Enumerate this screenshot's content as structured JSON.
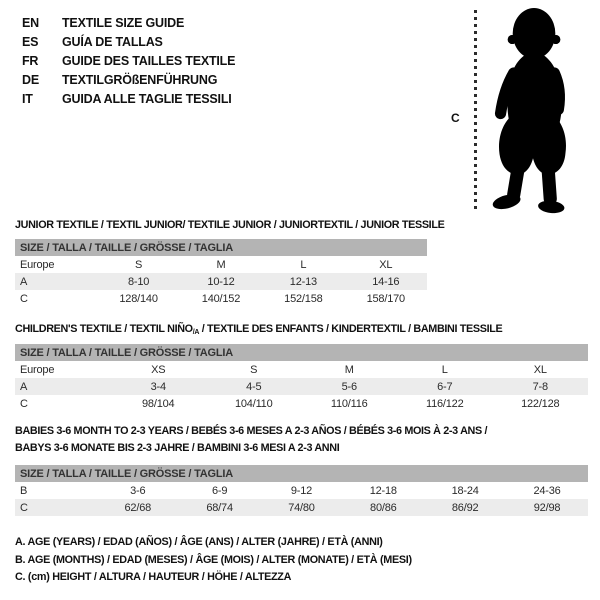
{
  "colors": {
    "band_bg": "#b4b4b4",
    "shaded_row_bg": "#ececec",
    "text": "#1a1a1a",
    "silhouette": "#000000"
  },
  "languages": [
    {
      "code": "EN",
      "title": "TEXTILE SIZE GUIDE"
    },
    {
      "code": "ES",
      "title": "GUÍA DE TALLAS"
    },
    {
      "code": "FR",
      "title": "GUIDE DES TAILLES TEXTILE"
    },
    {
      "code": "DE",
      "title": "TEXTILGRÖßENFÜHRUNG"
    },
    {
      "code": "IT",
      "title": "GUIDA ALLE TAGLIE TESSILI"
    }
  ],
  "figure": {
    "height_label": "C",
    "silhouette": "baby-toddler-standing"
  },
  "size_band_label": "SIZE / TALLA / TAILLE / GRÖSSE / TAGLIA",
  "tables": [
    {
      "id": "junior",
      "title_lines": [
        [
          {
            "text": "JUNIOR TEXTILE / TEXTIL JUNIOR/ TEXTILE JUNIOR / JUNIORTEXTIL / JUNIOR TESSILE"
          }
        ]
      ],
      "rows": [
        {
          "label": "Europe",
          "cells": [
            "S",
            "M",
            "L",
            "XL"
          ]
        },
        {
          "label": "A",
          "cells": [
            "8-10",
            "10-12",
            "12-13",
            "14-16"
          ]
        },
        {
          "label": "C",
          "cells": [
            "128/140",
            "140/152",
            "152/158",
            "158/170"
          ]
        }
      ]
    },
    {
      "id": "children",
      "title_lines": [
        [
          {
            "text": "CHILDREN'S TEXTILE / TEXTIL NIÑO"
          },
          {
            "text": "/A",
            "sub": true
          },
          {
            "text": " / TEXTILE DES ENFANTS / KINDERTEXTIL / BAMBINI TESSILE"
          }
        ]
      ],
      "rows": [
        {
          "label": "Europe",
          "cells": [
            "XS",
            "S",
            "M",
            "L",
            "XL"
          ]
        },
        {
          "label": "A",
          "cells": [
            "3-4",
            "4-5",
            "5-6",
            "6-7",
            "7-8"
          ]
        },
        {
          "label": "C",
          "cells": [
            "98/104",
            "104/110",
            "110/116",
            "116/122",
            "122/128"
          ]
        }
      ]
    },
    {
      "id": "babies",
      "title_lines": [
        [
          {
            "text": "BABIES 3-6 MONTH TO 2-3 YEARS / BEBÉS 3-6 MESES A 2-3 AÑOS / BÉBÉS 3-6 MOIS À 2-3 ANS /"
          }
        ],
        [
          {
            "text": "BABYS 3-6 MONATE BIS 2-3 JAHRE / BAMBINI 3-6 MESI A 2-3 ANNI"
          }
        ]
      ],
      "rows": [
        {
          "label": "B",
          "cells": [
            "3-6",
            "6-9",
            "9-12",
            "12-18",
            "18-24",
            "24-36"
          ]
        },
        {
          "label": "C",
          "cells": [
            "62/68",
            "68/74",
            "74/80",
            "80/86",
            "86/92",
            "92/98"
          ]
        }
      ]
    }
  ],
  "footnotes": [
    "A. AGE (YEARS) / EDAD (AÑOS) / ÂGE (ANS) / ALTER (JAHRE) / ETÀ (ANNI)",
    "B. AGE (MONTHS) / EDAD (MESES) / ÂGE (MOIS) / ALTER (MONATE) / ETÀ (MESI)",
    "C. (cm) HEIGHT / ALTURA / HAUTEUR / HÖHE / ALTEZZA"
  ]
}
